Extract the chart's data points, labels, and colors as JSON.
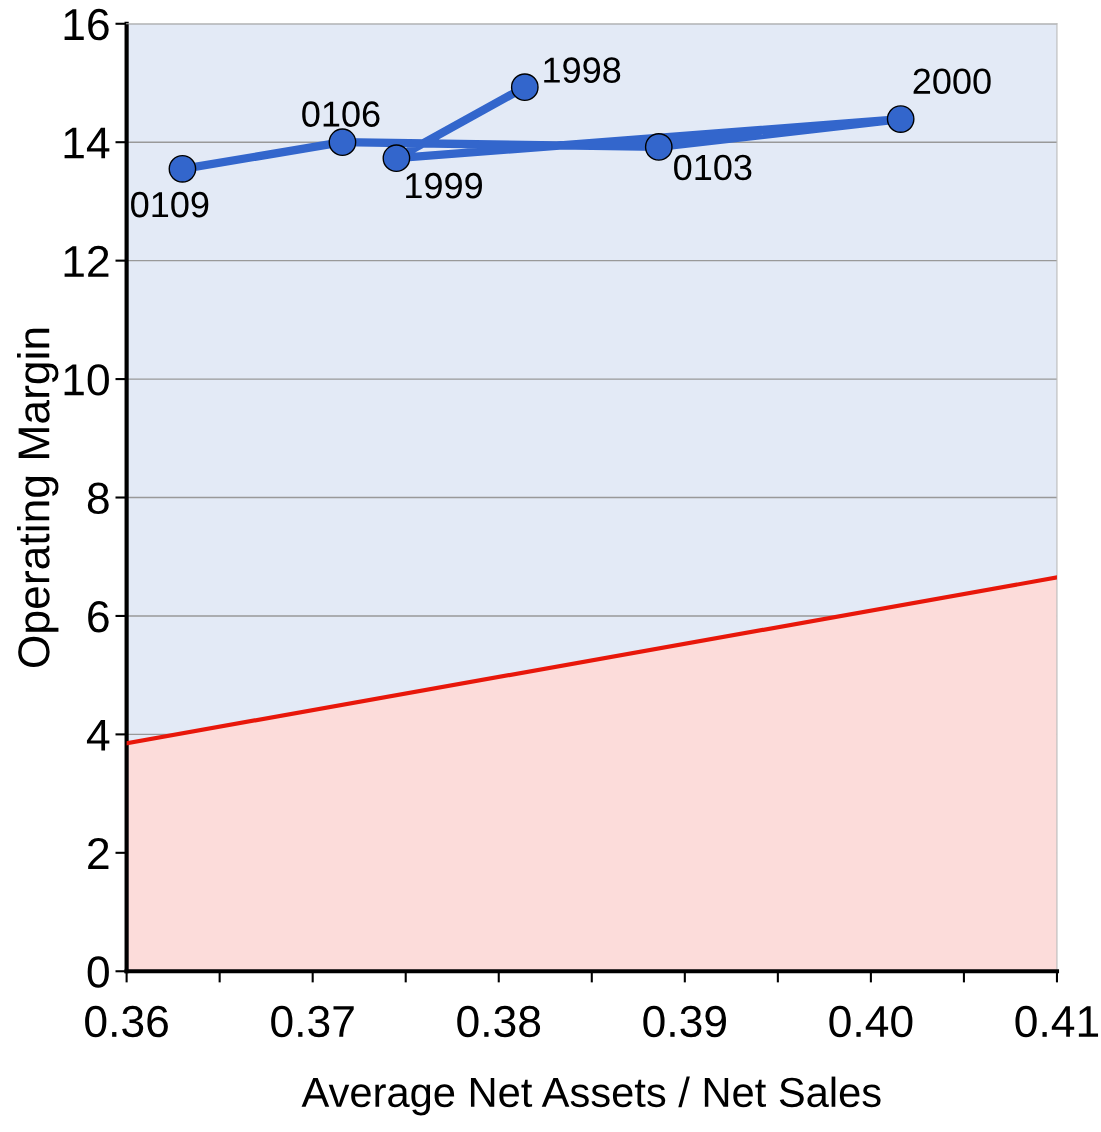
{
  "chart_data": {
    "type": "line",
    "xlabel": "Average Net Assets / Net Sales",
    "ylabel": "Operating Margin",
    "xlim": [
      0.36,
      0.41
    ],
    "ylim": [
      0,
      16
    ],
    "xticks": [
      {
        "value": 0.36,
        "label": "0.36"
      },
      {
        "value": 0.365,
        "label": null
      },
      {
        "value": 0.37,
        "label": "0.37"
      },
      {
        "value": 0.375,
        "label": null
      },
      {
        "value": 0.38,
        "label": "0.38"
      },
      {
        "value": 0.385,
        "label": null
      },
      {
        "value": 0.39,
        "label": "0.39"
      },
      {
        "value": 0.395,
        "label": null
      },
      {
        "value": 0.4,
        "label": "0.40"
      },
      {
        "value": 0.405,
        "label": null
      },
      {
        "value": 0.41,
        "label": "0.41"
      }
    ],
    "yticks": [
      0,
      2,
      4,
      6,
      8,
      10,
      12,
      14,
      16
    ],
    "grid": "y",
    "marker": "circle",
    "line_style": "solid",
    "series": [
      {
        "color": "#3366cc",
        "x": [
          0.3814,
          0.3745,
          0.4016,
          0.3886,
          0.3716,
          0.363
        ],
        "values": [
          14.93,
          13.73,
          14.39,
          13.92,
          14.0,
          13.55
        ]
      },
      {
        "type": "area",
        "marker": "none",
        "color": "#e8170a",
        "x": [
          0.36,
          0.41
        ],
        "values": [
          3.85,
          6.65
        ]
      }
    ],
    "annotations": [
      {
        "text": "1998",
        "x": 0.3814,
        "y": 14.93
      },
      {
        "text": "1999",
        "x": 0.3745,
        "y": 13.73
      },
      {
        "text": "2000",
        "x": 0.4016,
        "y": 14.39
      },
      {
        "text": "0103",
        "x": 0.3886,
        "y": 13.92
      },
      {
        "text": "0106",
        "x": 0.3716,
        "y": 14.0
      },
      {
        "text": "0109",
        "x": 0.363,
        "y": 13.55
      }
    ]
  }
}
